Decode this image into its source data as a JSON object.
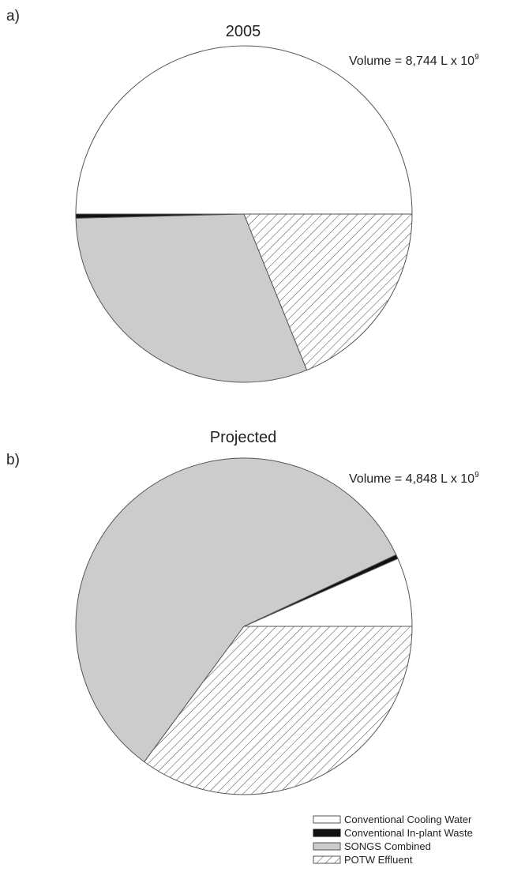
{
  "chart_data": [
    {
      "type": "pie",
      "panel_label": "a)",
      "title": "2005",
      "volume_text": "Volume = 8,744 L x 10",
      "volume_exponent": "9",
      "slices": [
        {
          "name": "Conventional Cooling Water",
          "value": 50.0
        },
        {
          "name": "Conventional In-plant Waste",
          "value": 0.4
        },
        {
          "name": "SONGS Combined",
          "value": 30.7
        },
        {
          "name": "POTW Effluent",
          "value": 18.9
        }
      ]
    },
    {
      "type": "pie",
      "panel_label": "b)",
      "title": "Projected",
      "volume_text": "Volume = 4,848 L x 10",
      "volume_exponent": "9",
      "slices": [
        {
          "name": "Conventional Cooling Water",
          "value": 6.6
        },
        {
          "name": "Conventional In-plant Waste",
          "value": 0.4
        },
        {
          "name": "SONGS Combined",
          "value": 57.9
        },
        {
          "name": "POTW Effluent",
          "value": 35.1
        }
      ]
    }
  ],
  "legend": {
    "items": [
      {
        "label": "Conventional Cooling Water",
        "style": "white"
      },
      {
        "label": "Conventional In-plant Waste",
        "style": "black"
      },
      {
        "label": "SONGS Combined",
        "style": "gray"
      },
      {
        "label": "POTW Effluent",
        "style": "hatch"
      }
    ]
  },
  "colors": {
    "cooling_water": "#ffffff",
    "inplant_waste": "#111111",
    "songs": "#cccccc",
    "potw_hatch": "#444444",
    "outline": "#555555"
  }
}
